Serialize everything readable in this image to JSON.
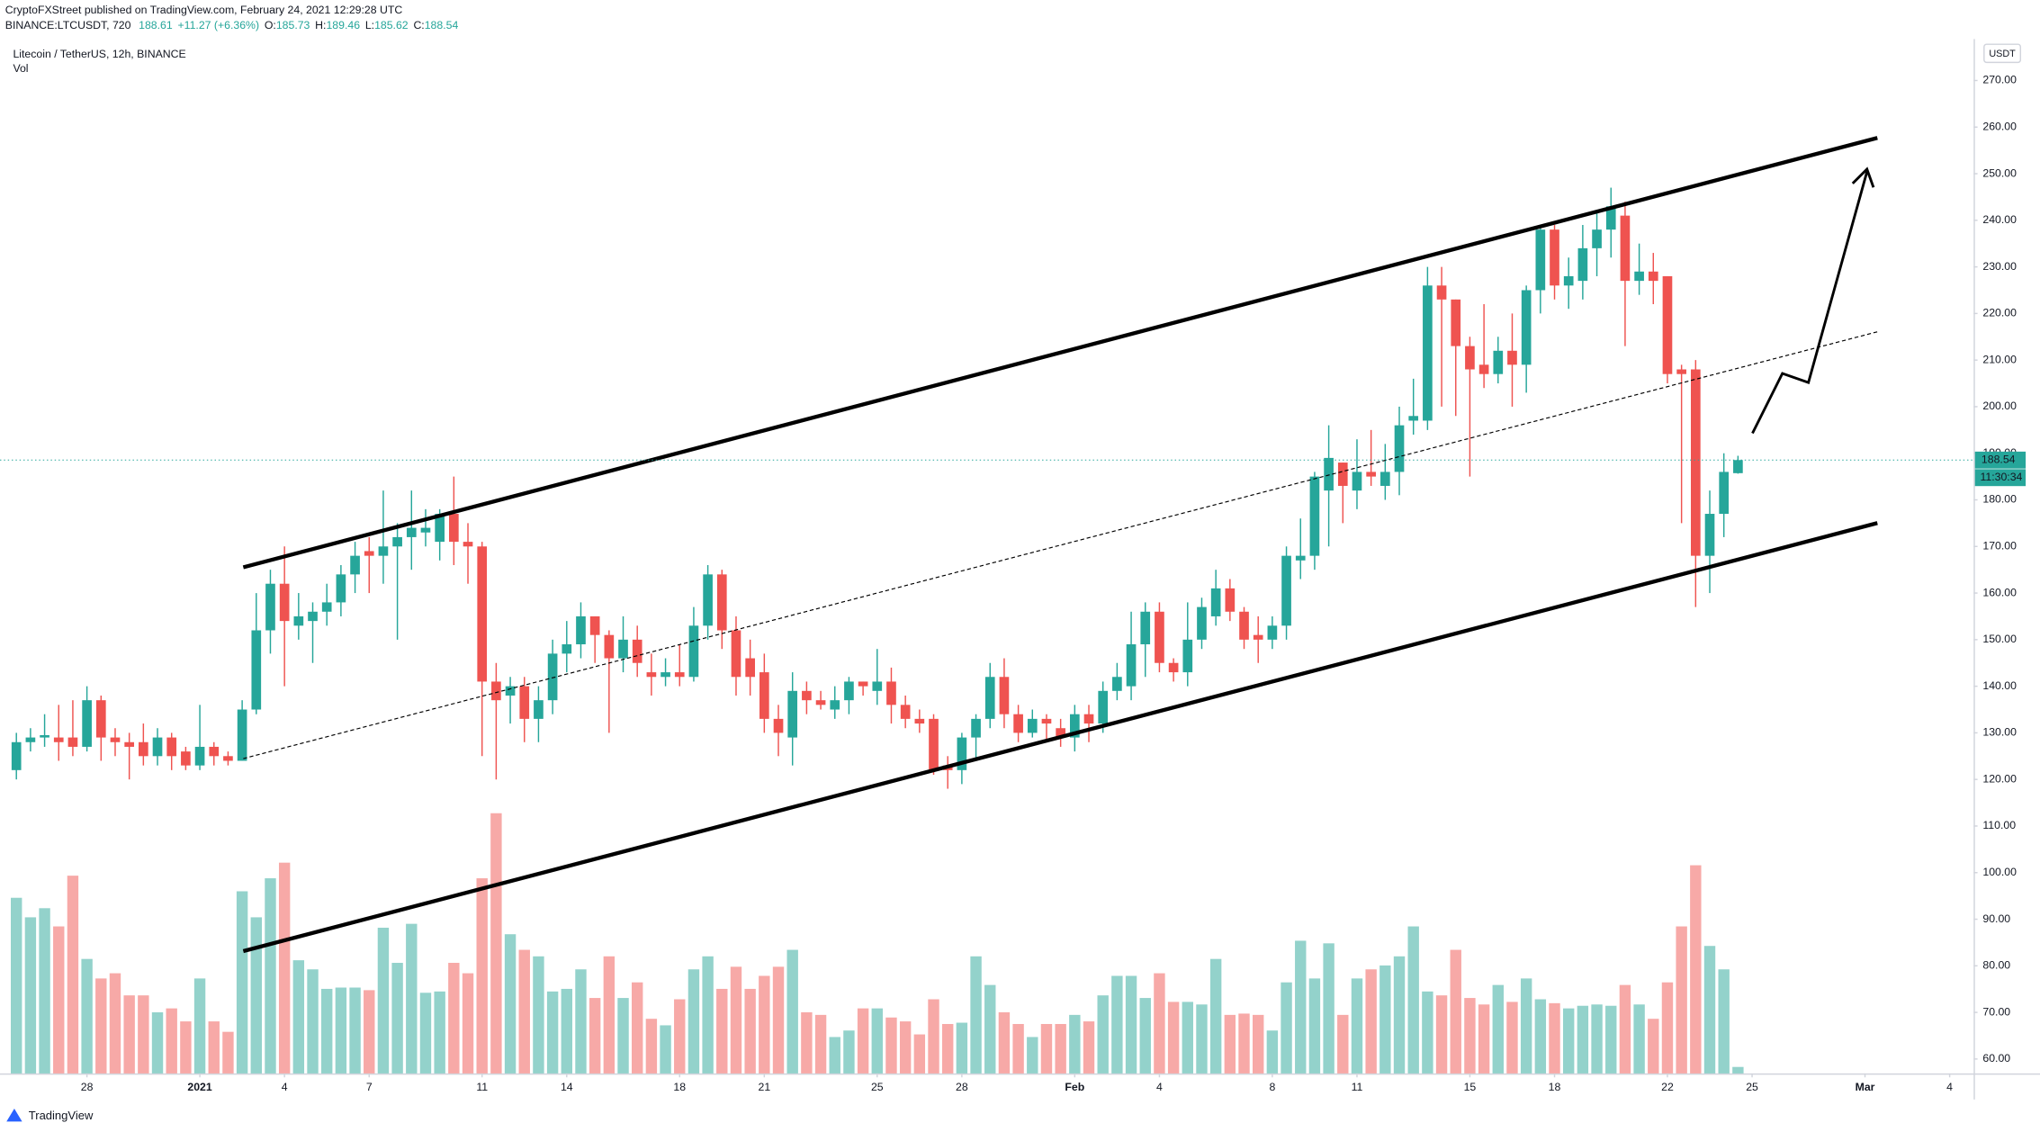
{
  "header": {
    "publisher": "CryptoFXStreet published on TradingView.com, February 24, 2021 12:29:28 UTC",
    "symbol": "BINANCE:LTCUSDT, 720",
    "price": "188.61",
    "change": "+11.27 (+6.36%)",
    "fields": [
      {
        "label": "O:",
        "value": "185.73"
      },
      {
        "label": "H:",
        "value": "189.46"
      },
      {
        "label": "L:",
        "value": "185.62"
      },
      {
        "label": "C:",
        "value": "188.54"
      }
    ]
  },
  "footer": {
    "brand": "TradingView"
  },
  "chart_data": {
    "type": "candlestick",
    "title": "Litecoin / TetherUS, 12h, BINANCE",
    "volume_label": "Vol",
    "y_unit": "USDT",
    "countdown": "11:30:34",
    "up_color": "#26a69a",
    "down_color": "#ef5350",
    "up_volume_color": "#93d2cb",
    "down_volume_color": "#f7a9a7",
    "open": [
      122,
      128,
      129,
      129,
      129,
      127,
      137,
      129,
      128,
      128,
      125,
      129,
      126,
      123,
      127,
      125,
      124,
      135,
      152,
      162,
      153,
      154,
      156,
      158,
      164,
      169,
      168,
      170,
      172,
      173,
      171,
      177,
      171,
      170,
      141,
      138,
      140,
      133,
      137,
      147,
      149,
      155,
      151,
      146,
      150,
      143,
      142,
      143,
      142,
      153,
      164,
      152,
      146,
      143,
      133,
      129,
      139,
      137,
      135,
      137,
      141,
      139,
      141,
      136,
      133,
      133,
      123,
      122,
      129,
      133,
      142,
      134,
      130,
      133,
      131,
      129,
      134,
      132,
      139,
      140,
      149,
      156,
      145,
      143,
      150,
      155,
      161,
      156,
      151,
      150,
      153,
      167,
      168,
      182,
      188,
      182,
      186,
      183,
      186,
      197,
      197,
      226,
      223,
      213,
      209,
      207,
      212,
      209,
      225,
      238,
      226,
      227,
      234,
      238,
      241,
      227,
      229,
      228,
      208,
      208,
      168,
      177,
      185.73
    ],
    "high": [
      130,
      131,
      134,
      136,
      137,
      140,
      138,
      131,
      130,
      132,
      131,
      130,
      127,
      136,
      128,
      126,
      137,
      160,
      165,
      170,
      160,
      158,
      162,
      166,
      171,
      172,
      182,
      175,
      182,
      178,
      178,
      185,
      175,
      171,
      145,
      142,
      142,
      140,
      150,
      154,
      158,
      155,
      152,
      155,
      153,
      147,
      146,
      149,
      157,
      166,
      165,
      155,
      150,
      147,
      136,
      143,
      141,
      139,
      140,
      142,
      141,
      148,
      144,
      138,
      135,
      134,
      125,
      130,
      134,
      145,
      146,
      136,
      135,
      134,
      133,
      136,
      136,
      141,
      145,
      156,
      158,
      158,
      146,
      158,
      159,
      165,
      163,
      157,
      155,
      155,
      170,
      176,
      186,
      196,
      188,
      193,
      195,
      192,
      200,
      206,
      230,
      230,
      223,
      215,
      222,
      215,
      220,
      226,
      239,
      239,
      232,
      239,
      242,
      247,
      244,
      235,
      233,
      228,
      209,
      210,
      182,
      190,
      189.46
    ],
    "low": [
      120,
      126,
      127,
      124,
      125,
      126,
      124,
      125,
      120,
      123,
      123,
      122,
      122,
      122,
      123,
      123,
      124,
      134,
      147,
      140,
      150,
      145,
      153,
      155,
      160,
      160,
      162,
      150,
      165,
      170,
      167,
      166,
      162,
      125,
      120,
      132,
      128,
      128,
      134,
      143,
      146,
      145,
      130,
      143,
      142,
      138,
      140,
      140,
      141,
      150,
      148,
      138,
      138,
      130,
      125,
      123,
      134,
      135,
      133,
      134,
      138,
      136,
      132,
      131,
      130,
      121,
      118,
      119,
      124,
      131,
      131,
      128,
      129,
      128,
      127,
      126,
      128,
      130,
      137,
      137,
      142,
      143,
      141,
      140,
      148,
      153,
      154,
      148,
      145,
      148,
      150,
      163,
      165,
      170,
      175,
      178,
      183,
      180,
      181,
      194,
      195,
      200,
      198,
      185,
      204,
      205,
      200,
      203,
      220,
      223,
      221,
      223,
      228,
      232,
      213,
      224,
      222,
      205,
      175,
      157,
      160,
      172,
      185.62
    ],
    "close": [
      128,
      129,
      129.5,
      128,
      127,
      137,
      129,
      128,
      127,
      125,
      129,
      125,
      123,
      127,
      125,
      124,
      135,
      152,
      162,
      154,
      155,
      156,
      158,
      164,
      168,
      168,
      170,
      172,
      174,
      174,
      177,
      171,
      170,
      141,
      137,
      140,
      133,
      137,
      147,
      149,
      155,
      151,
      146,
      150,
      145,
      142,
      143,
      142,
      153,
      164,
      152,
      142,
      142,
      133,
      130,
      139,
      137,
      136,
      137,
      141,
      140,
      141,
      136,
      133,
      132,
      122,
      122,
      129,
      133,
      142,
      134,
      130,
      133,
      132,
      129,
      134,
      132,
      139,
      142,
      149,
      156,
      145,
      143,
      150,
      157,
      161,
      156,
      150,
      150,
      153,
      168,
      168,
      185,
      189,
      183,
      186,
      185,
      186,
      196,
      198,
      226,
      223,
      213,
      208,
      207,
      212,
      209,
      225,
      238,
      226,
      228,
      234,
      238,
      243,
      227,
      229,
      227,
      207,
      207,
      168,
      177,
      186,
      188.54
    ],
    "volume": [
      135,
      120,
      127,
      113,
      152,
      88,
      73,
      77,
      60,
      60,
      47,
      50,
      40,
      73,
      40,
      32,
      140,
      120,
      150,
      162,
      87,
      80,
      65,
      66,
      66,
      64,
      112,
      85,
      115,
      62,
      63,
      85,
      77,
      150,
      200,
      107,
      95,
      90,
      63,
      65,
      80,
      58,
      90,
      58,
      70,
      42,
      37,
      57,
      80,
      90,
      65,
      82,
      65,
      75,
      82,
      95,
      47,
      45,
      28,
      33,
      50,
      50,
      43,
      40,
      30,
      57,
      38,
      39,
      90,
      68,
      47,
      38,
      28,
      38,
      38,
      45,
      40,
      60,
      75,
      75,
      58,
      77,
      55,
      55,
      53,
      88,
      45,
      46,
      45,
      33,
      70,
      102,
      73,
      100,
      45,
      73,
      80,
      83,
      90,
      113,
      63,
      60,
      95,
      58,
      53,
      68,
      55,
      73,
      57,
      54,
      50,
      52,
      53,
      52,
      68,
      53,
      42,
      70,
      113,
      160,
      98,
      80,
      5
    ],
    "xlim": [
      -0.7,
      138.7
    ],
    "xticks": [
      {
        "value": 5,
        "label": "28"
      },
      {
        "value": 13,
        "label": "2021"
      },
      {
        "value": 19,
        "label": "4"
      },
      {
        "value": 25,
        "label": "7"
      },
      {
        "value": 33,
        "label": "11"
      },
      {
        "value": 39,
        "label": "14"
      },
      {
        "value": 47,
        "label": "18"
      },
      {
        "value": 53,
        "label": "21"
      },
      {
        "value": 61,
        "label": "25"
      },
      {
        "value": 67,
        "label": "28"
      },
      {
        "value": 75,
        "label": "Feb"
      },
      {
        "value": 81,
        "label": "4"
      },
      {
        "value": 89,
        "label": "8"
      },
      {
        "value": 95,
        "label": "11"
      },
      {
        "value": 103,
        "label": "15"
      },
      {
        "value": 109,
        "label": "18"
      },
      {
        "value": 117,
        "label": "22"
      },
      {
        "value": 123,
        "label": "25"
      },
      {
        "value": 131,
        "label": "Mar"
      },
      {
        "value": 137,
        "label": "4"
      }
    ],
    "ylim": [
      56.9,
      278.9
    ],
    "yticks": [
      {
        "value": 60,
        "label": "60.00"
      },
      {
        "value": 70,
        "label": "70.00"
      },
      {
        "value": 80,
        "label": "80.00"
      },
      {
        "value": 90,
        "label": "90.00"
      },
      {
        "value": 100,
        "label": "100.00"
      },
      {
        "value": 110,
        "label": "110.00"
      },
      {
        "value": 120,
        "label": "120.00"
      },
      {
        "value": 130,
        "label": "130.00"
      },
      {
        "value": 140,
        "label": "140.00"
      },
      {
        "value": 150,
        "label": "150.00"
      },
      {
        "value": 160,
        "label": "160.00"
      },
      {
        "value": 170,
        "label": "170.00"
      },
      {
        "value": 180,
        "label": "180.00"
      },
      {
        "value": 190,
        "label": "190.00"
      },
      {
        "value": 200,
        "label": "200.00"
      },
      {
        "value": 210,
        "label": "210.00"
      },
      {
        "value": 220,
        "label": "220.00"
      },
      {
        "value": 230,
        "label": "230.00"
      },
      {
        "value": 240,
        "label": "240.00"
      },
      {
        "value": 250,
        "label": "250.00"
      },
      {
        "value": 260,
        "label": "260.00"
      },
      {
        "value": 270,
        "label": "270.00"
      }
    ]
  }
}
